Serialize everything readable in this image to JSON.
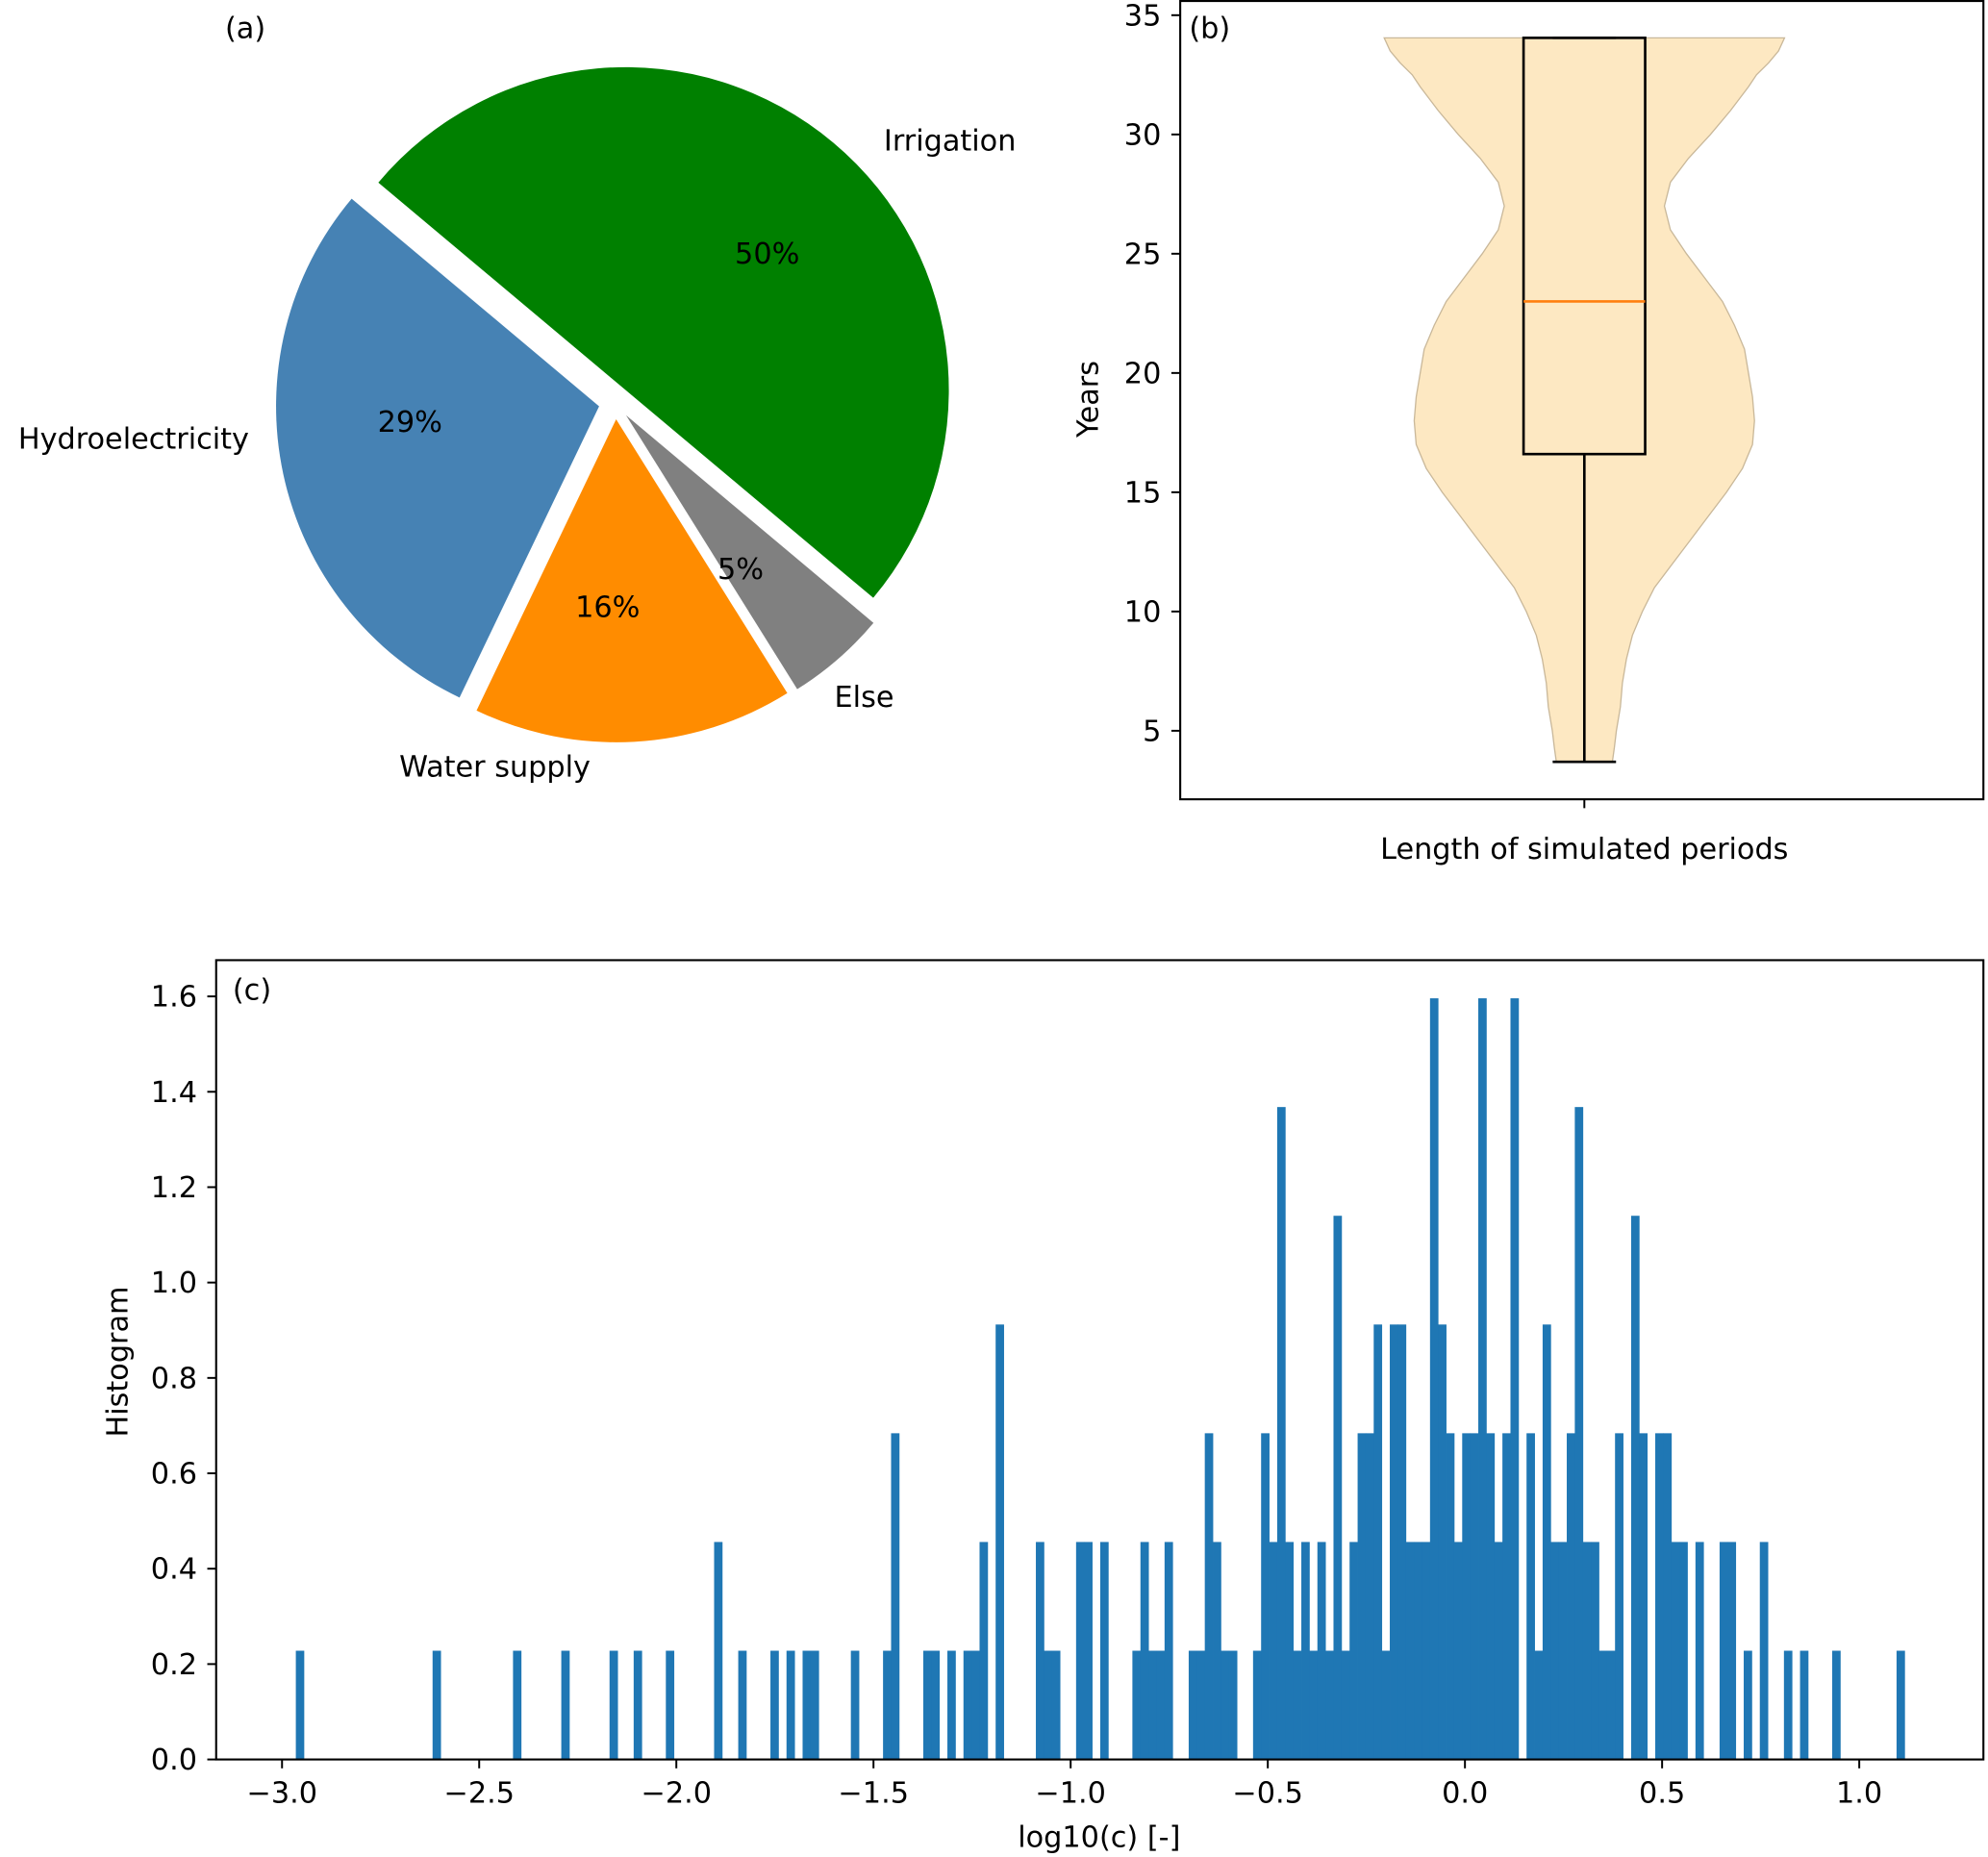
{
  "chart_data": [
    {
      "type": "pie",
      "panel_label": "(a)",
      "labels": [
        "Irrigation",
        "Hydroelectricity",
        "Water supply",
        "Else"
      ],
      "values": [
        50,
        29,
        16,
        5
      ],
      "pct_labels": [
        "50%",
        "29%",
        "16%",
        "5%"
      ],
      "colors": [
        "#008000",
        "#4682b4",
        "#ff8c00",
        "#808080"
      ],
      "start_angle": -40,
      "explode": 0.05
    },
    {
      "type": "violin",
      "panel_label": "(b)",
      "xlabel": "Length of simulated periods",
      "ylabel": "Years",
      "ylim": [
        2.18,
        35.62
      ],
      "yticks": [
        5,
        10,
        15,
        20,
        25,
        30,
        35
      ],
      "ytick_labels": [
        "5",
        "10",
        "15",
        "20",
        "25",
        "30",
        "35"
      ],
      "box": {
        "min": 3.7,
        "q1": 16.6,
        "median": 23.0,
        "q3": 34.05,
        "max": 34.05
      },
      "density_profile": [
        [
          3.7,
          0.14
        ],
        [
          4.3,
          0.15
        ],
        [
          5,
          0.16
        ],
        [
          6,
          0.18
        ],
        [
          7,
          0.19
        ],
        [
          8,
          0.21
        ],
        [
          9,
          0.24
        ],
        [
          10,
          0.29
        ],
        [
          11,
          0.35
        ],
        [
          12,
          0.44
        ],
        [
          13,
          0.53
        ],
        [
          14,
          0.62
        ],
        [
          15,
          0.71
        ],
        [
          16,
          0.79
        ],
        [
          17,
          0.84
        ],
        [
          18,
          0.85
        ],
        [
          19,
          0.84
        ],
        [
          20,
          0.82
        ],
        [
          21,
          0.8
        ],
        [
          22,
          0.75
        ],
        [
          23,
          0.69
        ],
        [
          24,
          0.6
        ],
        [
          25,
          0.51
        ],
        [
          26,
          0.43
        ],
        [
          27,
          0.4
        ],
        [
          28,
          0.43
        ],
        [
          29,
          0.52
        ],
        [
          30,
          0.63
        ],
        [
          31,
          0.73
        ],
        [
          32,
          0.82
        ],
        [
          32.5,
          0.86
        ],
        [
          33,
          0.92
        ],
        [
          33.5,
          0.97
        ],
        [
          34.05,
          1.0
        ]
      ],
      "colors": {
        "fill": "#fde8c2",
        "edge": "#c9b89a",
        "median": "#ff7f0e",
        "box": "#000000"
      }
    },
    {
      "type": "bar",
      "subtype": "histogram",
      "panel_label": "(c)",
      "xlabel": "log10(c) [-]",
      "ylabel": "Histogram",
      "xlim": [
        -3.167,
        1.315
      ],
      "ylim": [
        0,
        1.676
      ],
      "xticks": [
        -3.0,
        -2.5,
        -2.0,
        -1.5,
        -1.0,
        -0.5,
        0.0,
        0.5,
        1.0
      ],
      "xtick_labels": [
        "−3.0",
        "−2.5",
        "−2.0",
        "−1.5",
        "−1.0",
        "−0.5",
        "0.0",
        "0.5",
        "1.0"
      ],
      "yticks": [
        0,
        0.2,
        0.4,
        0.6,
        0.8,
        1.0,
        1.2,
        1.4,
        1.6
      ],
      "ytick_labels": [
        "0.0",
        "0.2",
        "0.4",
        "0.6",
        "0.8",
        "1.0",
        "1.2",
        "1.4",
        "1.6"
      ],
      "bin_start": -2.965,
      "bin_width": 0.0204,
      "density_per_count": 0.228,
      "counts": [
        1,
        0,
        0,
        0,
        0,
        0,
        0,
        0,
        0,
        0,
        0,
        0,
        0,
        0,
        0,
        0,
        0,
        1,
        0,
        0,
        0,
        0,
        0,
        0,
        0,
        0,
        0,
        1,
        0,
        0,
        0,
        0,
        0,
        1,
        0,
        0,
        0,
        0,
        0,
        1,
        0,
        0,
        1,
        0,
        0,
        0,
        1,
        0,
        0,
        0,
        0,
        0,
        2,
        0,
        0,
        1,
        0,
        0,
        0,
        1,
        0,
        1,
        0,
        1,
        1,
        0,
        0,
        0,
        0,
        1,
        0,
        0,
        0,
        1,
        3,
        0,
        0,
        0,
        1,
        1,
        0,
        1,
        0,
        1,
        1,
        2,
        0,
        4,
        0,
        0,
        0,
        0,
        2,
        1,
        1,
        0,
        0,
        2,
        2,
        0,
        2,
        0,
        0,
        0,
        1,
        2,
        1,
        1,
        2,
        0,
        0,
        1,
        1,
        3,
        2,
        1,
        1,
        0,
        0,
        1,
        3,
        2,
        6,
        2,
        1,
        2,
        1,
        2,
        1,
        5,
        1,
        2,
        3,
        3,
        4,
        1,
        4,
        4,
        2,
        2,
        2,
        7,
        4,
        3,
        2,
        3,
        3,
        7,
        3,
        2,
        3,
        7,
        0,
        3,
        1,
        4,
        2,
        2,
        3,
        6,
        2,
        2,
        1,
        1,
        3,
        0,
        5,
        3,
        0,
        3,
        3,
        2,
        2,
        0,
        2,
        0,
        0,
        2,
        2,
        0,
        1,
        0,
        2,
        0,
        0,
        1,
        0,
        1,
        0,
        0,
        0,
        1,
        0,
        0,
        0,
        0,
        0,
        0,
        0,
        1
      ],
      "color": "#1f77b4"
    }
  ]
}
